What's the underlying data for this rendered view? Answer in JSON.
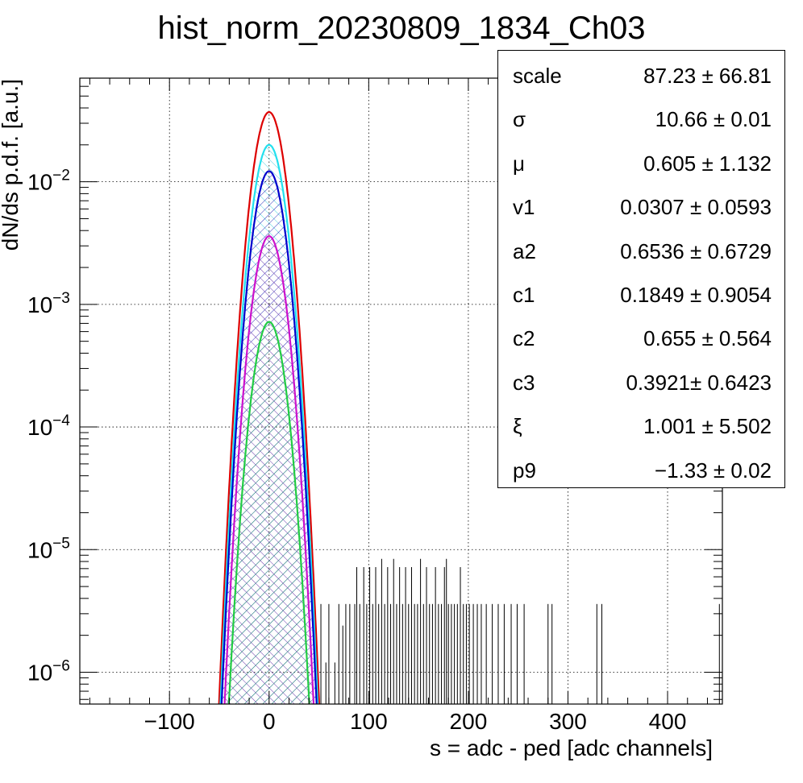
{
  "chart_data": {
    "type": "histogram",
    "title": "hist_norm_20230809_1834_Ch03",
    "xlabel": "s = adc - ped [adc channels]",
    "ylabel": "dN/ds p.d.f. [a.u.]",
    "x_range": [
      -190,
      455
    ],
    "y_range": [
      5.5e-07,
      0.07
    ],
    "y_scale": "log",
    "grid": true,
    "x_ticks": [
      {
        "value": -100,
        "label": "−100"
      },
      {
        "value": 0,
        "label": "0"
      },
      {
        "value": 100,
        "label": "100"
      },
      {
        "value": 200,
        "label": "200"
      },
      {
        "value": 300,
        "label": "300"
      },
      {
        "value": 400,
        "label": "400"
      }
    ],
    "y_ticks": [
      {
        "value": 0.01,
        "base": "10",
        "exp": "−2"
      },
      {
        "value": 0.001,
        "base": "10",
        "exp": "−3"
      },
      {
        "value": 0.0001,
        "base": "10",
        "exp": "−4"
      },
      {
        "value": 1e-05,
        "base": "10",
        "exp": "−5"
      },
      {
        "value": 1e-06,
        "base": "10",
        "exp": "−6"
      }
    ],
    "series": [
      {
        "peak_x": 0,
        "peak_y": 0.037,
        "sigma": 10.66,
        "color": "#dd0000",
        "fill": "none"
      },
      {
        "peak_x": 0,
        "peak_y": 0.02,
        "sigma": 10.66,
        "color": "#22e0ee",
        "fill": "hatch-cyan"
      },
      {
        "peak_x": 0,
        "peak_y": 0.0122,
        "sigma": 10.66,
        "color": "#0000cc",
        "fill": "hatch-blue"
      },
      {
        "peak_x": 0,
        "peak_y": 0.0036,
        "sigma": 10.66,
        "color": "#cc11cc",
        "fill": "hatch-magenta"
      },
      {
        "peak_x": 0,
        "peak_y": 0.00072,
        "sigma": 10.66,
        "color": "#22cc44",
        "fill": "hatch-green"
      }
    ],
    "data_spikes": [
      {
        "x": 52,
        "y": 3.6e-06
      },
      {
        "x": 57,
        "y": 1.2e-06
      },
      {
        "x": 60,
        "y": 3.6e-06
      },
      {
        "x": 66,
        "y": 1.2e-06
      },
      {
        "x": 70,
        "y": 3.6e-06
      },
      {
        "x": 74,
        "y": 2.4e-06
      },
      {
        "x": 77,
        "y": 3.6e-06
      },
      {
        "x": 81,
        "y": 3.6e-06
      },
      {
        "x": 86,
        "y": 3.6e-06
      },
      {
        "x": 88,
        "y": 7.2e-06
      },
      {
        "x": 91,
        "y": 3.6e-06
      },
      {
        "x": 95,
        "y": 7.2e-06
      },
      {
        "x": 98,
        "y": 3.6e-06
      },
      {
        "x": 101,
        "y": 7.2e-06
      },
      {
        "x": 104,
        "y": 3.6e-06
      },
      {
        "x": 107,
        "y": 7.2e-06
      },
      {
        "x": 110,
        "y": 3.6e-06
      },
      {
        "x": 113,
        "y": 8.4e-06
      },
      {
        "x": 116,
        "y": 3.6e-06
      },
      {
        "x": 119,
        "y": 7.2e-06
      },
      {
        "x": 122,
        "y": 3.6e-06
      },
      {
        "x": 125,
        "y": 8.4e-06
      },
      {
        "x": 128,
        "y": 3.6e-06
      },
      {
        "x": 131,
        "y": 7.2e-06
      },
      {
        "x": 134,
        "y": 3.6e-06
      },
      {
        "x": 137,
        "y": 7.2e-06
      },
      {
        "x": 140,
        "y": 3.6e-06
      },
      {
        "x": 143,
        "y": 7.2e-06
      },
      {
        "x": 146,
        "y": 3.6e-06
      },
      {
        "x": 149,
        "y": 3.6e-06
      },
      {
        "x": 152,
        "y": 8.4e-06
      },
      {
        "x": 155,
        "y": 3.6e-06
      },
      {
        "x": 158,
        "y": 7.2e-06
      },
      {
        "x": 161,
        "y": 3.6e-06
      },
      {
        "x": 164,
        "y": 3.6e-06
      },
      {
        "x": 167,
        "y": 7.2e-06
      },
      {
        "x": 170,
        "y": 3.6e-06
      },
      {
        "x": 173,
        "y": 3.6e-06
      },
      {
        "x": 176,
        "y": 7.2e-06
      },
      {
        "x": 178,
        "y": 8.4e-06
      },
      {
        "x": 180,
        "y": 3.6e-06
      },
      {
        "x": 183,
        "y": 3.6e-06
      },
      {
        "x": 186,
        "y": 3.6e-06
      },
      {
        "x": 189,
        "y": 3.6e-06
      },
      {
        "x": 192,
        "y": 7.2e-06
      },
      {
        "x": 195,
        "y": 3.6e-06
      },
      {
        "x": 198,
        "y": 3.6e-06
      },
      {
        "x": 201,
        "y": 3.6e-06
      },
      {
        "x": 205,
        "y": 3.6e-06
      },
      {
        "x": 209,
        "y": 3.6e-06
      },
      {
        "x": 213,
        "y": 3.6e-06
      },
      {
        "x": 218,
        "y": 3.6e-06
      },
      {
        "x": 224,
        "y": 3.6e-06
      },
      {
        "x": 230,
        "y": 3.6e-06
      },
      {
        "x": 236,
        "y": 3.6e-06
      },
      {
        "x": 243,
        "y": 3.6e-06
      },
      {
        "x": 249,
        "y": 3.6e-06
      },
      {
        "x": 256,
        "y": 3.6e-06
      },
      {
        "x": 280,
        "y": 3.6e-06
      },
      {
        "x": 284,
        "y": 3.6e-06
      },
      {
        "x": 329,
        "y": 3.6e-06
      },
      {
        "x": 334,
        "y": 3.6e-06
      },
      {
        "x": 452,
        "y": 3.6e-06
      }
    ],
    "stats": [
      {
        "name": "scale",
        "value": "87.23 ± 66.81"
      },
      {
        "name": "σ",
        "value": "10.66 ± 0.01"
      },
      {
        "name": "μ",
        "value": "0.605 ± 1.132"
      },
      {
        "name": "v1",
        "value": "0.0307 ± 0.0593"
      },
      {
        "name": "a2",
        "value": "0.6536 ± 0.6729"
      },
      {
        "name": "c1",
        "value": "0.1849 ± 0.9054"
      },
      {
        "name": "c2",
        "value": "0.655 ± 0.564"
      },
      {
        "name": "c3",
        "value": "0.3921± 0.6423"
      },
      {
        "name": "ξ",
        "value": "1.001 ± 5.502"
      },
      {
        "name": "p9",
        "value": "−1.33 ± 0.02"
      }
    ]
  }
}
